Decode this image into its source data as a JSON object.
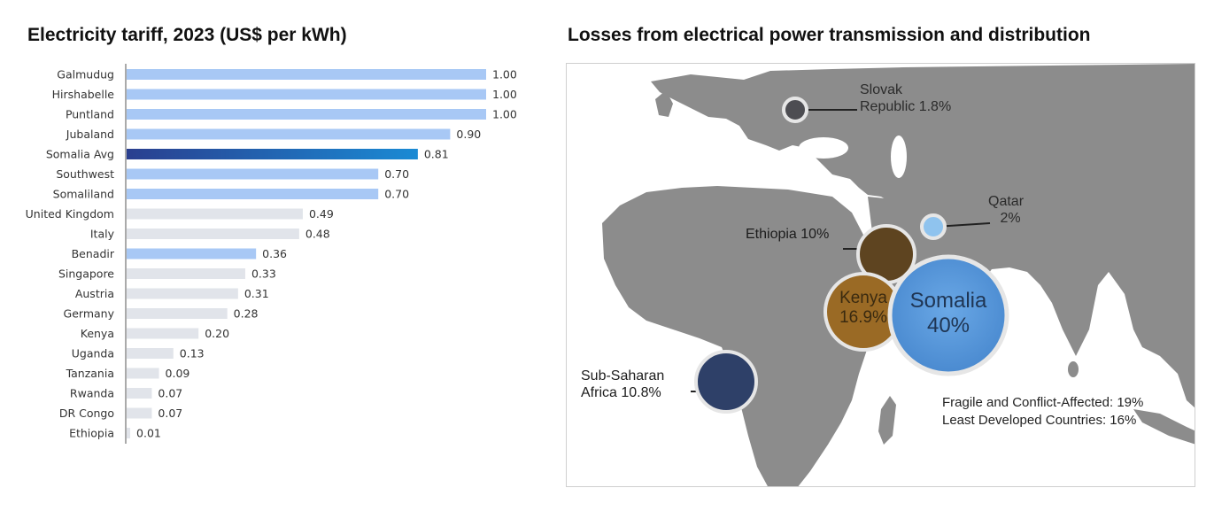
{
  "left_title": "Electricity tariff, 2023 (US$ per kWh)",
  "right_title": "Losses from electrical power transmission and distribution",
  "chart_data": [
    {
      "type": "bar",
      "orientation": "horizontal",
      "title": "Electricity tariff, 2023 (US$ per kWh)",
      "categories": [
        "Galmudug",
        "Hirshabelle",
        "Puntland",
        "Jubaland",
        "Somalia Avg",
        "Southwest",
        "Somaliland",
        "United Kingdom",
        "Italy",
        "Benadir",
        "Singapore",
        "Austria",
        "Germany",
        "Kenya",
        "Uganda",
        "Tanzania",
        "Rwanda",
        "DR Congo",
        "Ethiopia"
      ],
      "values": [
        1.0,
        1.0,
        1.0,
        0.9,
        0.81,
        0.7,
        0.7,
        0.49,
        0.48,
        0.36,
        0.33,
        0.31,
        0.28,
        0.2,
        0.13,
        0.09,
        0.07,
        0.07,
        0.01
      ],
      "value_labels": [
        "1.00",
        "1.00",
        "1.00",
        "0.90",
        "0.81",
        "0.70",
        "0.70",
        "0.49",
        "0.48",
        "0.36",
        "0.33",
        "0.31",
        "0.28",
        "0.20",
        "0.13",
        "0.09",
        "0.07",
        "0.07",
        "0.01"
      ],
      "bar_groups": [
        "somalia",
        "somalia",
        "somalia",
        "somalia",
        "avg",
        "somalia",
        "somalia",
        "intl",
        "intl",
        "somalia",
        "intl",
        "intl",
        "intl",
        "intl",
        "intl",
        "intl",
        "intl",
        "intl",
        "intl"
      ],
      "colors": {
        "somalia": "#a8c8f5",
        "avg_start": "#2a3f8f",
        "avg_end": "#1a8ad4",
        "intl": "#e1e4ea"
      },
      "xlim": [
        0,
        1.0
      ],
      "grid": false
    },
    {
      "type": "bubble-map",
      "title": "Losses from electrical power transmission and distribution",
      "points": [
        {
          "name": "Slovak Republic",
          "value": 1.8,
          "label": "Slovak\nRepublic 1.8%",
          "color": "#4d4d52"
        },
        {
          "name": "Qatar",
          "value": 2,
          "label": "Qatar\n2%",
          "color": "#8fc3ee"
        },
        {
          "name": "Ethiopia",
          "value": 10,
          "label": "Ethiopia 10%",
          "color": "#5e4420"
        },
        {
          "name": "Kenya",
          "value": 16.9,
          "label": "Kenya\n16.9%",
          "color": "#9a6a25"
        },
        {
          "name": "Somalia",
          "value": 40,
          "label": "Somalia\n40%",
          "color": "#5b9bdc"
        },
        {
          "name": "Sub-Saharan Africa",
          "value": 10.8,
          "label": "Sub-Saharan\nAfrica 10.8%",
          "color": "#2e4068"
        }
      ],
      "notes": [
        "Fragile and Conflict-Affected: 19%",
        "Least Developed Countries: 16%"
      ]
    }
  ],
  "map_labels": {
    "slovak_line1": "Slovak",
    "slovak_line2": "Republic 1.8%",
    "qatar_line1": "Qatar",
    "qatar_line2": "2%",
    "ethiopia": "Ethiopia 10%",
    "kenya_line1": "Kenya",
    "kenya_line2": "16.9%",
    "somalia_line1": "Somalia",
    "somalia_line2": "40%",
    "ssa_line1": "Sub-Saharan",
    "ssa_line2": "Africa 10.8%",
    "note_fragile": "Fragile and Conflict-Affected: 19%",
    "note_ldc": "Least Developed Countries: 16%"
  },
  "map_colors": {
    "land": "#8c8c8c",
    "sea": "#ffffff",
    "bubble_ring": "#e6e6e6"
  }
}
